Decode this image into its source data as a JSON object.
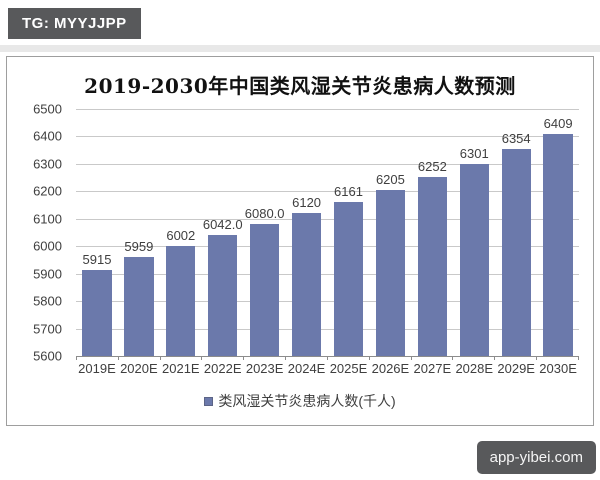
{
  "badges": {
    "top_left": "TG: MYYJJPP",
    "bottom_right": "app-yibei.com"
  },
  "chart_data": {
    "type": "bar",
    "title": "2019-2030年中国类风湿关节炎患病人数预测",
    "categories": [
      "2019E",
      "2020E",
      "2021E",
      "2022E",
      "2023E",
      "2024E",
      "2025E",
      "2026E",
      "2027E",
      "2028E",
      "2029E",
      "2030E"
    ],
    "values": [
      5915,
      5959,
      6002,
      6042.0,
      6080.0,
      6120,
      6161,
      6205,
      6252,
      6301,
      6354,
      6409
    ],
    "value_labels": [
      "5915",
      "5959",
      "6002",
      "6042.0",
      "6080.0",
      "6120",
      "6161",
      "6205",
      "6252",
      "6301",
      "6354",
      "6409"
    ],
    "legend": "类风湿关节炎患病人数(千人)",
    "ylabel": "",
    "xlabel": "",
    "ylim": [
      5600,
      6500
    ],
    "ytick_step": 100,
    "yticks": [
      5600,
      5700,
      5800,
      5900,
      6000,
      6100,
      6200,
      6300,
      6400,
      6500
    ],
    "grid": true,
    "legend_position": "bottom",
    "bar_color": "#6b79ab",
    "gridline_color": "#c9c9c9",
    "axis_color": "#8c8c8c"
  }
}
